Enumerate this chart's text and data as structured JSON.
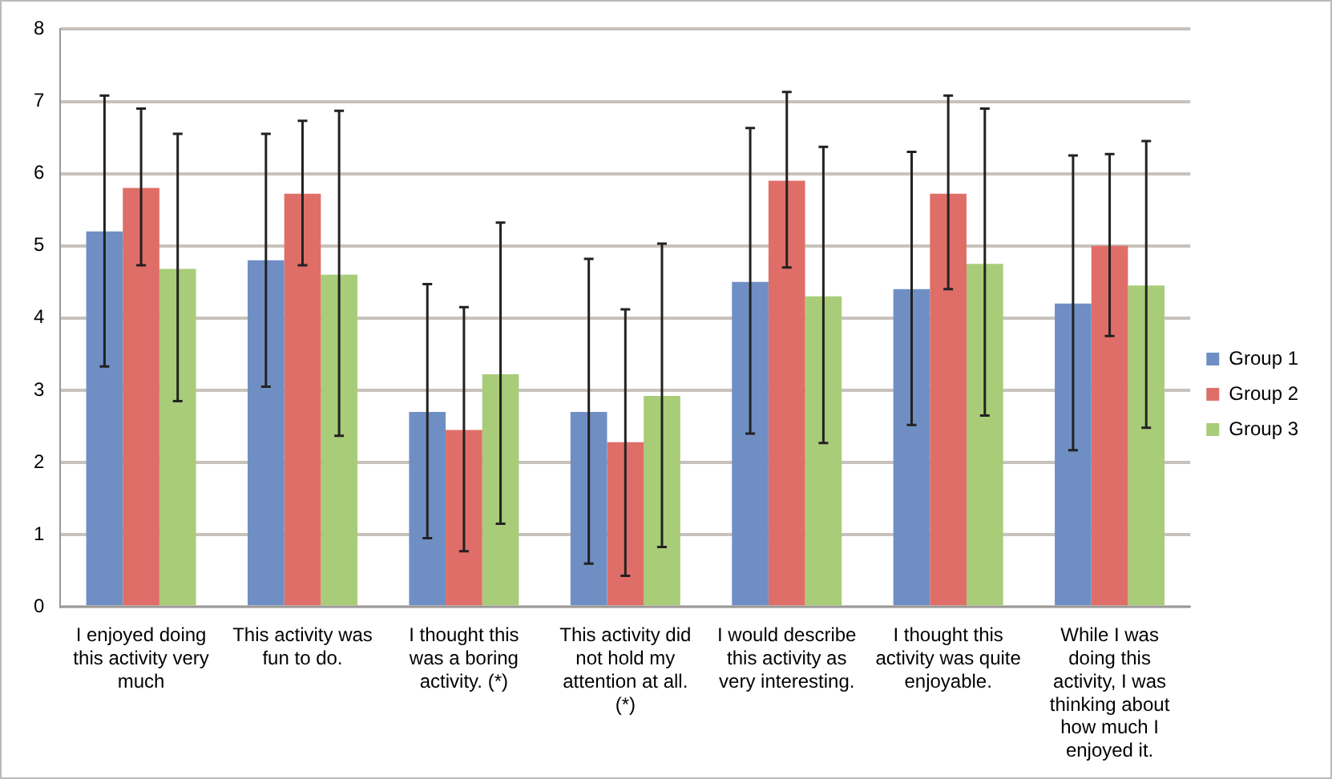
{
  "chart_data": {
    "type": "bar",
    "categories": [
      "I enjoyed doing this activity very much",
      "This activity was fun to do.",
      "I thought this was a boring activity. (*)",
      "This activity did not hold my attention at all. (*)",
      "I would describe this activity as very interesting.",
      "I thought this activity was quite enjoyable.",
      "While I was doing this activity, I was thinking about how much I enjoyed it."
    ],
    "series": [
      {
        "name": "Group 1",
        "color": "#6f8fc4",
        "values": [
          5.2,
          4.8,
          2.7,
          2.7,
          4.5,
          4.4,
          4.2
        ],
        "errors": [
          [
            3.33,
            7.08
          ],
          [
            3.05,
            6.55
          ],
          [
            0.95,
            4.47
          ],
          [
            0.6,
            4.82
          ],
          [
            2.4,
            6.63
          ],
          [
            2.52,
            6.3
          ],
          [
            2.17,
            6.25
          ]
        ]
      },
      {
        "name": "Group 2",
        "color": "#e06e68",
        "values": [
          5.8,
          5.72,
          2.45,
          2.28,
          5.9,
          5.72,
          5.0
        ],
        "errors": [
          [
            4.73,
            6.9
          ],
          [
            4.73,
            6.73
          ],
          [
            0.77,
            4.15
          ],
          [
            0.43,
            4.12
          ],
          [
            4.7,
            7.13
          ],
          [
            4.4,
            7.08
          ],
          [
            3.75,
            6.27
          ]
        ]
      },
      {
        "name": "Group 3",
        "color": "#a8cc78",
        "values": [
          4.68,
          4.6,
          3.22,
          2.92,
          4.3,
          4.75,
          4.45
        ],
        "errors": [
          [
            2.85,
            6.55
          ],
          [
            2.37,
            6.87
          ],
          [
            1.15,
            5.32
          ],
          [
            0.83,
            5.03
          ],
          [
            2.27,
            6.37
          ],
          [
            2.65,
            6.9
          ],
          [
            2.48,
            6.45
          ]
        ]
      }
    ],
    "ylim": [
      0,
      8
    ],
    "yticks": [
      0,
      1,
      2,
      3,
      4,
      5,
      6,
      7,
      8
    ],
    "grid": "y",
    "legend": "right"
  }
}
